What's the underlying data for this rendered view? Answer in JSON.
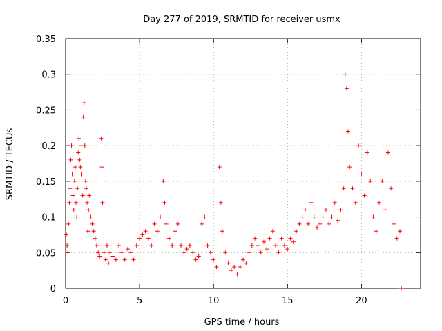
{
  "chart_data": {
    "type": "scatter",
    "title": "Day 277 of 2019, SRMTID for receiver usmx",
    "xlabel": "GPS time / hours",
    "ylabel": "SRMTID / TECUs",
    "xlim": [
      0,
      24
    ],
    "ylim": [
      0,
      0.35
    ],
    "x_ticks": [
      0,
      5,
      10,
      15,
      20
    ],
    "x_tick_labels": [
      "0",
      "5",
      "10",
      "15",
      "20"
    ],
    "y_ticks": [
      0,
      0.05,
      0.1,
      0.15,
      0.2,
      0.25,
      0.3,
      0.35
    ],
    "y_tick_labels": [
      "0",
      "0.05",
      "0.1",
      "0.15",
      "0.2",
      "0.25",
      "0.3",
      "0.35"
    ],
    "grid": true,
    "marker": "+",
    "series": [
      {
        "name": "SRMTID",
        "color": "#ff0000",
        "points": [
          [
            0.05,
            0.075
          ],
          [
            0.1,
            0.06
          ],
          [
            0.15,
            0.05
          ],
          [
            0.2,
            0.09
          ],
          [
            0.25,
            0.12
          ],
          [
            0.3,
            0.14
          ],
          [
            0.35,
            0.18
          ],
          [
            0.4,
            0.2
          ],
          [
            0.45,
            0.16
          ],
          [
            0.5,
            0.13
          ],
          [
            0.55,
            0.11
          ],
          [
            0.6,
            0.15
          ],
          [
            0.65,
            0.17
          ],
          [
            0.7,
            0.12
          ],
          [
            0.75,
            0.1
          ],
          [
            0.8,
            0.14
          ],
          [
            0.85,
            0.19
          ],
          [
            0.9,
            0.21
          ],
          [
            0.95,
            0.18
          ],
          [
            1.0,
            0.17
          ],
          [
            1.05,
            0.2
          ],
          [
            1.1,
            0.16
          ],
          [
            1.15,
            0.13
          ],
          [
            1.2,
            0.24
          ],
          [
            1.25,
            0.26
          ],
          [
            1.3,
            0.2
          ],
          [
            1.35,
            0.15
          ],
          [
            1.4,
            0.14
          ],
          [
            1.45,
            0.12
          ],
          [
            1.5,
            0.08
          ],
          [
            1.55,
            0.11
          ],
          [
            1.6,
            0.13
          ],
          [
            1.7,
            0.1
          ],
          [
            1.8,
            0.09
          ],
          [
            1.9,
            0.08
          ],
          [
            2.0,
            0.07
          ],
          [
            2.1,
            0.06
          ],
          [
            2.2,
            0.05
          ],
          [
            2.3,
            0.045
          ],
          [
            2.4,
            0.21
          ],
          [
            2.45,
            0.17
          ],
          [
            2.5,
            0.12
          ],
          [
            2.6,
            0.05
          ],
          [
            2.7,
            0.04
          ],
          [
            2.8,
            0.06
          ],
          [
            2.9,
            0.035
          ],
          [
            3.0,
            0.05
          ],
          [
            3.2,
            0.045
          ],
          [
            3.4,
            0.04
          ],
          [
            3.6,
            0.06
          ],
          [
            3.8,
            0.05
          ],
          [
            4.0,
            0.04
          ],
          [
            4.2,
            0.055
          ],
          [
            4.4,
            0.05
          ],
          [
            4.6,
            0.04
          ],
          [
            4.8,
            0.06
          ],
          [
            5.0,
            0.07
          ],
          [
            5.2,
            0.075
          ],
          [
            5.4,
            0.08
          ],
          [
            5.6,
            0.07
          ],
          [
            5.8,
            0.06
          ],
          [
            6.0,
            0.09
          ],
          [
            6.2,
            0.08
          ],
          [
            6.4,
            0.1
          ],
          [
            6.6,
            0.15
          ],
          [
            6.7,
            0.12
          ],
          [
            6.8,
            0.09
          ],
          [
            7.0,
            0.07
          ],
          [
            7.2,
            0.06
          ],
          [
            7.4,
            0.08
          ],
          [
            7.6,
            0.09
          ],
          [
            7.8,
            0.06
          ],
          [
            8.0,
            0.05
          ],
          [
            8.2,
            0.055
          ],
          [
            8.4,
            0.06
          ],
          [
            8.6,
            0.05
          ],
          [
            8.8,
            0.04
          ],
          [
            9.0,
            0.045
          ],
          [
            9.2,
            0.09
          ],
          [
            9.4,
            0.1
          ],
          [
            9.6,
            0.06
          ],
          [
            9.8,
            0.05
          ],
          [
            10.0,
            0.04
          ],
          [
            10.2,
            0.03
          ],
          [
            10.4,
            0.17
          ],
          [
            10.5,
            0.12
          ],
          [
            10.6,
            0.08
          ],
          [
            10.8,
            0.05
          ],
          [
            11.0,
            0.035
          ],
          [
            11.2,
            0.025
          ],
          [
            11.4,
            0.03
          ],
          [
            11.6,
            0.02
          ],
          [
            11.8,
            0.03
          ],
          [
            12.0,
            0.04
          ],
          [
            12.2,
            0.035
          ],
          [
            12.4,
            0.05
          ],
          [
            12.6,
            0.06
          ],
          [
            12.8,
            0.07
          ],
          [
            13.0,
            0.06
          ],
          [
            13.2,
            0.05
          ],
          [
            13.4,
            0.065
          ],
          [
            13.6,
            0.055
          ],
          [
            13.8,
            0.07
          ],
          [
            14.0,
            0.08
          ],
          [
            14.2,
            0.06
          ],
          [
            14.4,
            0.05
          ],
          [
            14.6,
            0.07
          ],
          [
            14.8,
            0.06
          ],
          [
            15.0,
            0.055
          ],
          [
            15.2,
            0.07
          ],
          [
            15.4,
            0.065
          ],
          [
            15.6,
            0.08
          ],
          [
            15.8,
            0.09
          ],
          [
            16.0,
            0.1
          ],
          [
            16.2,
            0.11
          ],
          [
            16.4,
            0.09
          ],
          [
            16.6,
            0.12
          ],
          [
            16.8,
            0.1
          ],
          [
            17.0,
            0.085
          ],
          [
            17.2,
            0.09
          ],
          [
            17.4,
            0.1
          ],
          [
            17.6,
            0.11
          ],
          [
            17.8,
            0.09
          ],
          [
            18.0,
            0.1
          ],
          [
            18.2,
            0.12
          ],
          [
            18.4,
            0.095
          ],
          [
            18.6,
            0.11
          ],
          [
            18.8,
            0.14
          ],
          [
            18.9,
            0.3
          ],
          [
            19.0,
            0.28
          ],
          [
            19.1,
            0.22
          ],
          [
            19.2,
            0.17
          ],
          [
            19.4,
            0.14
          ],
          [
            19.6,
            0.12
          ],
          [
            19.8,
            0.2
          ],
          [
            20.0,
            0.16
          ],
          [
            20.2,
            0.13
          ],
          [
            20.4,
            0.19
          ],
          [
            20.6,
            0.15
          ],
          [
            20.8,
            0.1
          ],
          [
            21.0,
            0.08
          ],
          [
            21.2,
            0.12
          ],
          [
            21.4,
            0.15
          ],
          [
            21.6,
            0.11
          ],
          [
            21.8,
            0.19
          ],
          [
            22.0,
            0.14
          ],
          [
            22.2,
            0.09
          ],
          [
            22.4,
            0.07
          ],
          [
            22.6,
            0.08
          ],
          [
            22.7,
            0.0
          ]
        ]
      }
    ]
  }
}
